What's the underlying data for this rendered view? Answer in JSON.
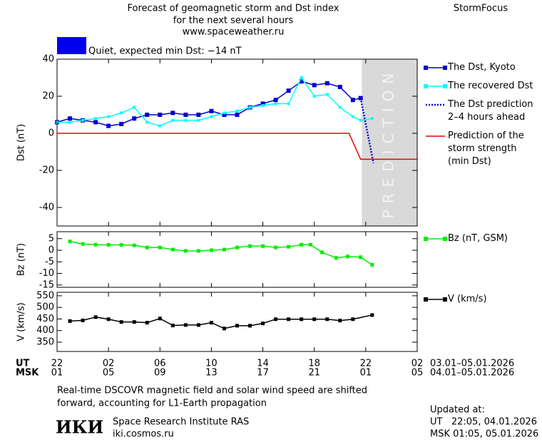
{
  "header": {
    "title_lines": [
      "Forecast of geomagnetic storm and Dst index",
      "for the next several hours",
      "www.spaceweather.ru"
    ],
    "brand": "StormFocus",
    "status": {
      "text": "Quiet, expected min Dst: −14 nT",
      "color": "#0000ee"
    }
  },
  "chart_data": [
    {
      "type": "line",
      "ylabel": "Dst (nT)",
      "xlim": [
        0,
        28
      ],
      "ylim": [
        -50,
        40
      ],
      "yticks": [
        40,
        20,
        0,
        -20,
        -40
      ],
      "band": {
        "label": "PREDICTION",
        "x": [
          23.7,
          28
        ],
        "color": "#d9d9d9"
      },
      "series": [
        {
          "name": "The Dst, Kyoto",
          "color": "#0000cc",
          "style": "solid",
          "marker": 6,
          "x": [
            0,
            1,
            2,
            3,
            4,
            5,
            6,
            7,
            8,
            9,
            10,
            11,
            12,
            13,
            14,
            15,
            16,
            17,
            18,
            19,
            20,
            21,
            22,
            23,
            23.6
          ],
          "values": [
            6,
            8,
            7,
            6,
            4,
            5,
            8,
            10,
            10,
            11,
            10,
            10,
            12,
            10,
            10,
            14,
            16,
            18,
            23,
            28,
            26,
            27,
            25,
            18,
            19
          ]
        },
        {
          "name": "The recovered Dst",
          "color": "#00ffff",
          "style": "solid",
          "marker": 4,
          "x": [
            0,
            1,
            2,
            3,
            4,
            5,
            6,
            7,
            8,
            9,
            10,
            11,
            12,
            13,
            14,
            15,
            16,
            17,
            18,
            19,
            20,
            21,
            22,
            23,
            23.6,
            24.5
          ],
          "values": [
            6,
            6,
            7,
            8,
            9,
            11,
            14,
            6,
            4,
            7,
            7,
            7,
            9,
            11,
            12,
            14,
            15,
            16,
            16,
            30,
            20,
            21,
            14,
            9,
            7,
            8
          ]
        },
        {
          "name": "The Dst prediction 2–4 hours ahead",
          "color": "#0000cc",
          "style": "dotted",
          "marker": 0,
          "x": [
            23.6,
            24.6
          ],
          "values": [
            19,
            -16
          ]
        },
        {
          "name": "Prediction of the storm strength (min Dst)",
          "color": "#ee0000",
          "style": "solid",
          "marker": 0,
          "x": [
            0,
            22.7,
            23.6,
            28
          ],
          "values": [
            0,
            0,
            -14,
            -14
          ]
        }
      ]
    },
    {
      "type": "line",
      "ylabel": "Bz (nT)",
      "xlim": [
        0,
        28
      ],
      "ylim": [
        -16,
        8
      ],
      "yticks": [
        5,
        0,
        -5,
        -10,
        -15
      ],
      "series": [
        {
          "name": "Bz (nT, GSM)",
          "color": "#00ee00",
          "style": "solid",
          "marker": 5,
          "x": [
            1,
            2,
            3,
            4,
            5,
            6,
            7,
            8,
            9,
            10,
            11,
            12,
            13,
            14,
            15,
            16,
            17,
            18,
            19,
            19.7,
            20.6,
            21.7,
            22.6,
            23.6,
            24.5
          ],
          "values": [
            3.8,
            2.7,
            2.4,
            2.3,
            2.3,
            2.1,
            1.2,
            1.2,
            0.3,
            -0.3,
            -0.3,
            0,
            0.3,
            1.2,
            1.8,
            1.8,
            1.2,
            1.5,
            2.4,
            2.4,
            -0.9,
            -3.3,
            -2.7,
            -3,
            -6.3
          ]
        }
      ]
    },
    {
      "type": "line",
      "ylabel": "V (km/s)",
      "xlim": [
        0,
        28
      ],
      "ylim": [
        310,
        565
      ],
      "yticks": [
        550,
        500,
        450,
        400,
        350
      ],
      "xticks": [
        {
          "value": 0,
          "label": "22"
        },
        {
          "value": 4,
          "label": "02"
        },
        {
          "value": 8,
          "label": "06"
        },
        {
          "value": 12,
          "label": "10"
        },
        {
          "value": 16,
          "label": "14"
        },
        {
          "value": 20,
          "label": "18"
        },
        {
          "value": 24,
          "label": "22"
        },
        {
          "value": 28,
          "label": "02"
        }
      ],
      "xticks_msk": [
        {
          "value": 0,
          "label": "01"
        },
        {
          "value": 4,
          "label": "05"
        },
        {
          "value": 8,
          "label": "09"
        },
        {
          "value": 12,
          "label": "13"
        },
        {
          "value": 16,
          "label": "17"
        },
        {
          "value": 20,
          "label": "21"
        },
        {
          "value": 24,
          "label": "01"
        },
        {
          "value": 28,
          "label": "05"
        }
      ],
      "x_row_labels": [
        "UT",
        "MSK"
      ],
      "x_row_ranges": [
        "03.01–05.01.2026",
        "04.01–05.01.2026"
      ],
      "series": [
        {
          "name": "V (km/s)",
          "color": "#000000",
          "style": "solid",
          "marker": 5,
          "x": [
            1,
            2,
            3,
            4,
            5,
            6,
            7,
            8,
            9,
            10,
            11,
            12,
            13,
            14,
            15,
            16,
            17,
            18,
            19,
            20,
            21,
            22,
            23,
            24.5
          ],
          "values": [
            441,
            444,
            458,
            449,
            437,
            437,
            434,
            452,
            422,
            424,
            424,
            434,
            409,
            421,
            421,
            431,
            449,
            449,
            449,
            449,
            449,
            443,
            449,
            467
          ]
        }
      ]
    }
  ],
  "footer": {
    "note_lines": [
      "Real-time DSCOVR magnetic field and solar wind speed are shifted",
      "forward, accounting for L1-Earth propagation"
    ],
    "logo": "ИКИ",
    "institute": "Space Research Institute RAS",
    "site": "iki.cosmos.ru",
    "updated": [
      "Updated at:",
      "UT   22:05, 04.01.2026",
      "MSK 01:05, 05.01.2026"
    ]
  }
}
